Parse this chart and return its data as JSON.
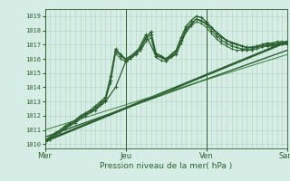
{
  "background_color": "#d5ede5",
  "plot_bg_color": "#d5ede5",
  "grid_color": "#b0d4c0",
  "dark_green": "#2d6030",
  "ylabel_ticks": [
    1010,
    1011,
    1012,
    1013,
    1014,
    1015,
    1016,
    1017,
    1018,
    1019
  ],
  "ylim": [
    1009.7,
    1019.5
  ],
  "xlabel": "Pression niveau de la mer( hPa )",
  "day_labels": [
    "Mer",
    "Jeu",
    "Ven",
    "Sam"
  ],
  "day_positions": [
    0,
    96,
    192,
    288
  ],
  "total_hours": 288,
  "series": [
    {
      "name": "straight_bold",
      "x": [
        0,
        288
      ],
      "y": [
        1010.2,
        1017.2
      ],
      "color": "#2d6030",
      "lw": 1.8,
      "marker": null,
      "ms": 0
    },
    {
      "name": "straight_mid",
      "x": [
        0,
        288
      ],
      "y": [
        1010.5,
        1016.6
      ],
      "color": "#2d6030",
      "lw": 1.0,
      "marker": null,
      "ms": 0
    },
    {
      "name": "straight_thin",
      "x": [
        0,
        288
      ],
      "y": [
        1011.0,
        1016.3
      ],
      "color": "#3a8040",
      "lw": 0.7,
      "marker": null,
      "ms": 0
    },
    {
      "name": "line_main_marker",
      "x": [
        0,
        6,
        12,
        18,
        24,
        30,
        36,
        42,
        48,
        54,
        60,
        66,
        72,
        78,
        84,
        90,
        96,
        102,
        108,
        114,
        120,
        126,
        132,
        138,
        144,
        150,
        156,
        162,
        168,
        174,
        180,
        186,
        192,
        198,
        204,
        210,
        216,
        222,
        228,
        234,
        240,
        246,
        252,
        258,
        264,
        270,
        276,
        282,
        288
      ],
      "y": [
        1010.2,
        1010.4,
        1010.7,
        1010.9,
        1011.2,
        1011.4,
        1011.6,
        1011.9,
        1012.1,
        1012.3,
        1012.5,
        1012.8,
        1013.1,
        1014.5,
        1016.7,
        1016.3,
        1016.0,
        1016.2,
        1016.5,
        1016.8,
        1017.5,
        1017.9,
        1016.4,
        1016.2,
        1016.0,
        1016.3,
        1016.6,
        1017.5,
        1018.3,
        1018.7,
        1019.0,
        1018.9,
        1018.6,
        1018.2,
        1017.8,
        1017.5,
        1017.3,
        1017.1,
        1017.0,
        1016.9,
        1016.8,
        1016.8,
        1016.9,
        1017.0,
        1017.1,
        1017.1,
        1017.2,
        1017.2,
        1017.2
      ],
      "color": "#2d6030",
      "lw": 1.0,
      "marker": "+",
      "ms": 3.0
    },
    {
      "name": "line2_marker",
      "x": [
        0,
        6,
        12,
        18,
        24,
        30,
        36,
        42,
        48,
        54,
        60,
        66,
        72,
        78,
        84,
        90,
        96,
        102,
        108,
        114,
        120,
        126,
        132,
        138,
        144,
        150,
        156,
        162,
        168,
        174,
        180,
        186,
        192,
        198,
        204,
        210,
        216,
        222,
        228,
        234,
        240,
        246,
        252,
        258,
        264,
        270,
        276,
        282,
        288
      ],
      "y": [
        1010.3,
        1010.5,
        1010.8,
        1011.0,
        1011.3,
        1011.5,
        1011.7,
        1012.0,
        1012.2,
        1012.4,
        1012.7,
        1013.0,
        1013.3,
        1014.8,
        1016.6,
        1016.2,
        1015.9,
        1016.1,
        1016.4,
        1016.7,
        1017.4,
        1017.7,
        1016.3,
        1016.1,
        1015.9,
        1016.2,
        1016.5,
        1017.3,
        1018.1,
        1018.5,
        1018.8,
        1018.7,
        1018.4,
        1018.0,
        1017.6,
        1017.3,
        1017.1,
        1016.9,
        1016.8,
        1016.7,
        1016.7,
        1016.7,
        1016.8,
        1016.9,
        1017.0,
        1017.0,
        1017.1,
        1017.1,
        1017.1
      ],
      "color": "#2d6030",
      "lw": 0.8,
      "marker": "+",
      "ms": 2.5
    },
    {
      "name": "line3_marker",
      "x": [
        0,
        6,
        12,
        18,
        24,
        30,
        36,
        42,
        48,
        54,
        60,
        66,
        72,
        78,
        84,
        90,
        96,
        102,
        108,
        114,
        120,
        126,
        132,
        138,
        144,
        150,
        156,
        162,
        168,
        174,
        180,
        186,
        192,
        198,
        204,
        210,
        216,
        222,
        228,
        234,
        240,
        246,
        252,
        258,
        264,
        270,
        276,
        282,
        288
      ],
      "y": [
        1010.1,
        1010.3,
        1010.6,
        1010.8,
        1011.1,
        1011.4,
        1011.6,
        1011.9,
        1012.1,
        1012.3,
        1012.6,
        1012.9,
        1013.2,
        1014.3,
        1016.4,
        1016.0,
        1015.8,
        1016.0,
        1016.3,
        1016.6,
        1017.2,
        1017.5,
        1016.1,
        1015.9,
        1015.8,
        1016.1,
        1016.4,
        1017.1,
        1017.9,
        1018.3,
        1018.6,
        1018.5,
        1018.2,
        1017.8,
        1017.4,
        1017.1,
        1016.9,
        1016.7,
        1016.6,
        1016.6,
        1016.6,
        1016.6,
        1016.7,
        1016.8,
        1016.9,
        1016.9,
        1017.0,
        1017.0,
        1017.0
      ],
      "color": "#2d6030",
      "lw": 0.7,
      "marker": "+",
      "ms": 2.0
    },
    {
      "name": "line4_marker",
      "x": [
        0,
        12,
        24,
        36,
        48,
        60,
        72,
        84,
        96,
        108,
        120,
        132,
        144,
        156,
        168,
        180,
        192,
        216,
        240,
        264,
        288
      ],
      "y": [
        1010.2,
        1010.7,
        1011.1,
        1011.5,
        1012.0,
        1012.4,
        1013.0,
        1014.0,
        1015.8,
        1016.3,
        1017.7,
        1016.2,
        1016.0,
        1016.3,
        1018.0,
        1018.8,
        1018.5,
        1017.3,
        1016.8,
        1016.9,
        1017.1
      ],
      "color": "#2d6030",
      "lw": 0.9,
      "marker": "+",
      "ms": 2.5
    }
  ]
}
